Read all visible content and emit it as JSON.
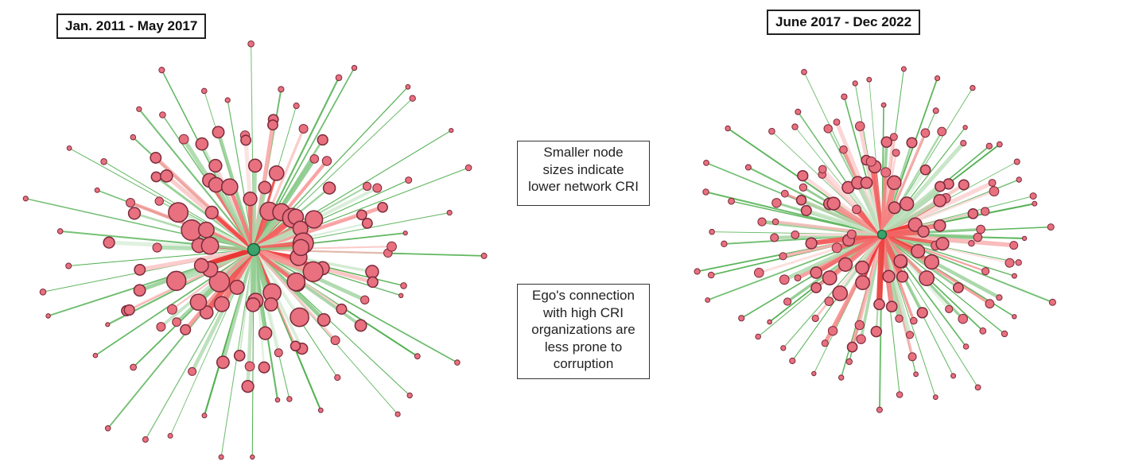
{
  "panels": [
    {
      "id": "left",
      "label": "Jan. 2011 - May 2017"
    },
    {
      "id": "right",
      "label": "June 2017 - Dec 2022"
    }
  ],
  "notes": {
    "node_size": [
      "Smaller node",
      "sizes indicate",
      "lower network CRI"
    ],
    "ego_connection": [
      "Ego's connection",
      "with high CRI",
      "organizations are",
      "less prone to",
      "corruption"
    ]
  },
  "colors": {
    "ego_node": "#3aa36b",
    "alter_node": "#e8707f",
    "node_stroke": "#7a2a3a",
    "edge_green": "#3aa53a",
    "edge_red": "#ee2222",
    "label_border": "#222222"
  }
}
